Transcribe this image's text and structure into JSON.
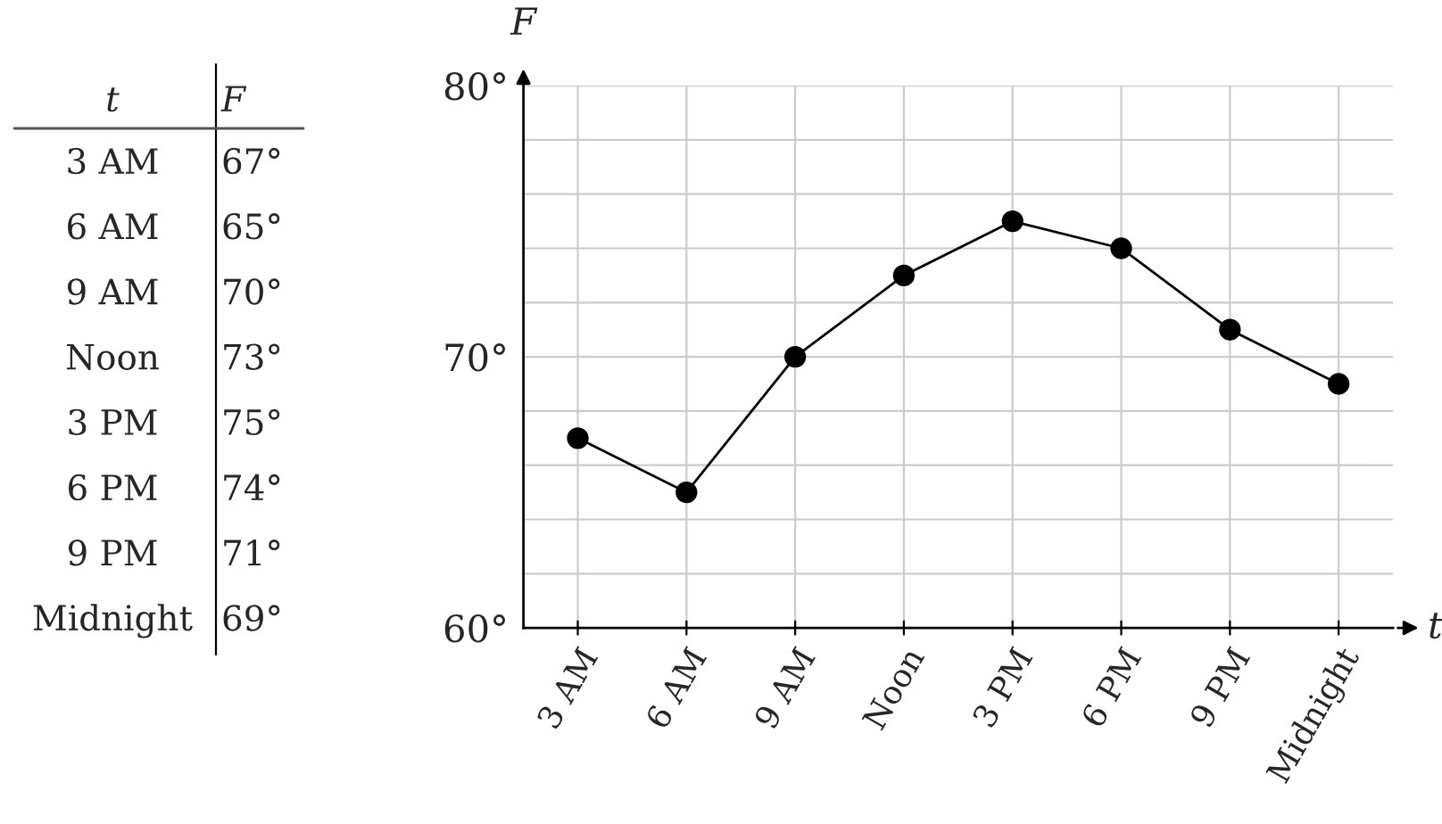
{
  "chart_data": {
    "type": "line",
    "xlabel": "t",
    "ylabel": "F",
    "categories": [
      "3 AM",
      "6 AM",
      "9 AM",
      "Noon",
      "3 PM",
      "6 PM",
      "9 PM",
      "Midnight"
    ],
    "series": [
      {
        "color": "#000000",
        "values": [
          67,
          65,
          70,
          73,
          75,
          74,
          71,
          69
        ]
      }
    ],
    "value_labels": [
      "67°",
      "65°",
      "70°",
      "73°",
      "75°",
      "74°",
      "71°",
      "69°"
    ],
    "ylim": [
      60,
      80
    ],
    "yticks": [
      {
        "value": 60,
        "label": "60°"
      },
      {
        "value": 62,
        "label": null
      },
      {
        "value": 64,
        "label": null
      },
      {
        "value": 66,
        "label": null
      },
      {
        "value": 68,
        "label": null
      },
      {
        "value": 70,
        "label": "70°"
      },
      {
        "value": 72,
        "label": null
      },
      {
        "value": 74,
        "label": null
      },
      {
        "value": 76,
        "label": null
      },
      {
        "value": 78,
        "label": null
      },
      {
        "value": 80,
        "label": "80°"
      }
    ],
    "annotations": [
      "t",
      "F"
    ],
    "grid": true,
    "marker": "circle",
    "line_style": "solid",
    "legend": false
  }
}
